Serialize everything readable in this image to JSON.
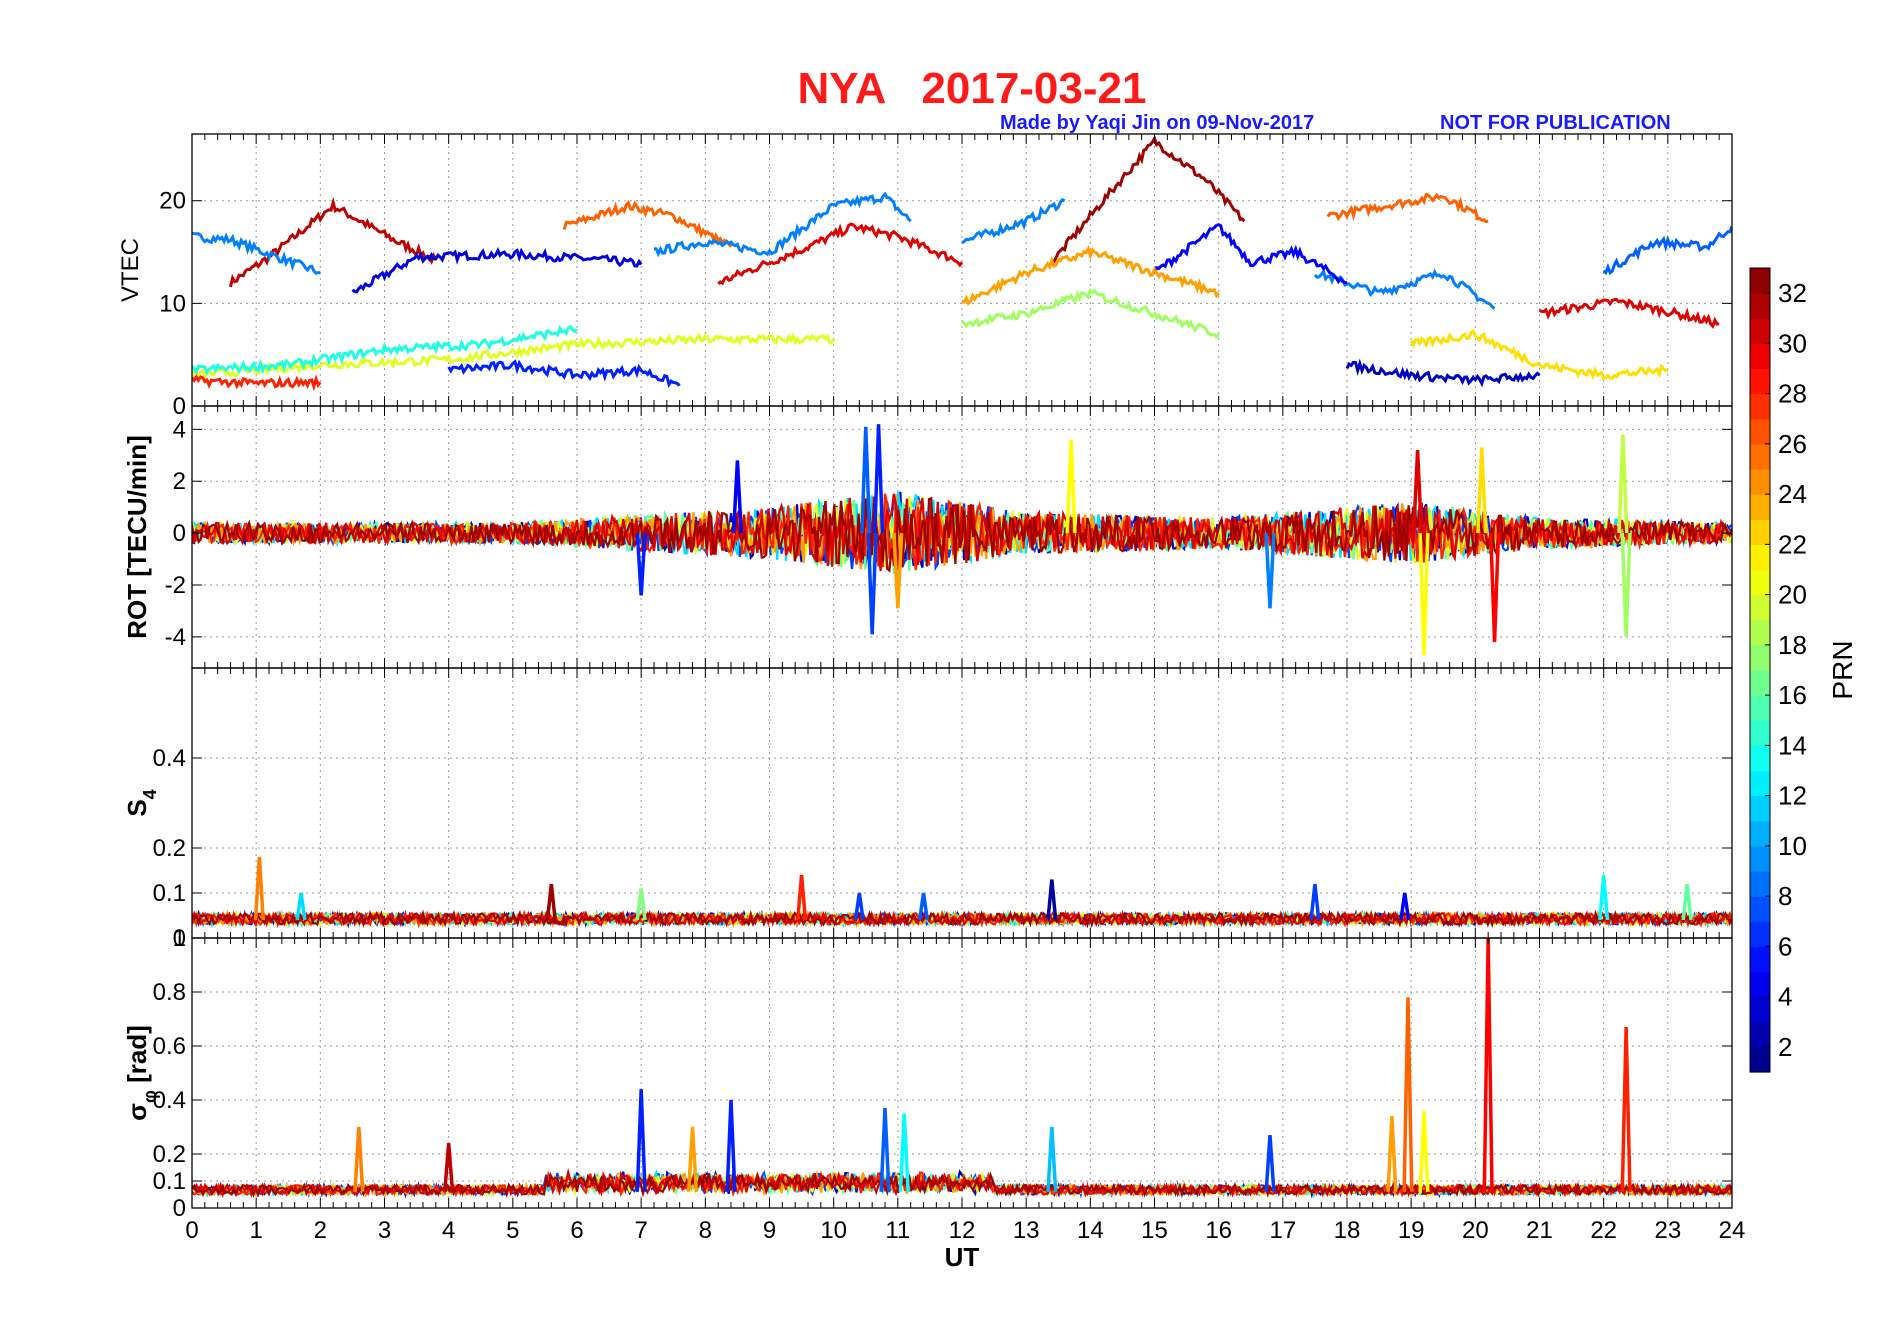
{
  "title": "NYA   2017-03-21",
  "subtitle_left": "Made by Yaqi Jin on 09-Nov-2017",
  "subtitle_right": "NOT FOR PUBLICATION",
  "colors": {
    "title": "#ff1a1a",
    "subtitle": "#1a1aff",
    "axes": "#000000",
    "grid": "#9a9a9a"
  },
  "chart_data": [
    {
      "id": "vtec",
      "type": "line",
      "ylabel": "VTEC",
      "ylim": [
        0,
        26.5
      ],
      "yticks": [
        0,
        10,
        20
      ],
      "xlim": [
        0,
        24
      ],
      "series_sample": [
        {
          "prn": 31,
          "points": [
            [
              0.6,
              12
            ],
            [
              1.2,
              14.5
            ],
            [
              2.2,
              19.5
            ],
            [
              3.2,
              16
            ],
            [
              3.8,
              14.2
            ]
          ]
        },
        {
          "prn": 9,
          "points": [
            [
              0,
              16.5
            ],
            [
              0.6,
              16.2
            ],
            [
              1.2,
              14.8
            ],
            [
              2,
              13
            ]
          ]
        },
        {
          "prn": 4,
          "points": [
            [
              2.5,
              11
            ],
            [
              3.5,
              14.5
            ],
            [
              5,
              14.8
            ],
            [
              6.5,
              14.2
            ],
            [
              7,
              13.8
            ]
          ]
        },
        {
          "prn": 26,
          "points": [
            [
              5.8,
              17.5
            ],
            [
              6.8,
              19.5
            ],
            [
              7.5,
              18.5
            ],
            [
              8.4,
              15.5
            ]
          ]
        },
        {
          "prn": 9,
          "points": [
            [
              7.2,
              15
            ],
            [
              8,
              16
            ],
            [
              9,
              15
            ],
            [
              10,
              19.5
            ],
            [
              10.8,
              20.4
            ],
            [
              11.2,
              18
            ]
          ]
        },
        {
          "prn": 30,
          "points": [
            [
              8.2,
              12
            ],
            [
              9.6,
              15.5
            ],
            [
              10.3,
              17.5
            ],
            [
              11,
              16.5
            ],
            [
              12,
              14
            ]
          ]
        },
        {
          "prn": 9,
          "points": [
            [
              12,
              16
            ],
            [
              13,
              18
            ],
            [
              13.6,
              20
            ]
          ]
        },
        {
          "prn": 32,
          "points": [
            [
              13.4,
              14
            ],
            [
              14.2,
              20
            ],
            [
              15,
              25.8
            ],
            [
              15.8,
              22
            ],
            [
              16.4,
              18
            ]
          ]
        },
        {
          "prn": 26,
          "points": [
            [
              17.7,
              18.5
            ],
            [
              18.6,
              19.5
            ],
            [
              19.5,
              20.5
            ],
            [
              20.2,
              18
            ]
          ]
        },
        {
          "prn": 9,
          "points": [
            [
              17.5,
              13
            ],
            [
              18.5,
              11
            ],
            [
              19.5,
              13
            ],
            [
              20.3,
              9.5
            ]
          ]
        },
        {
          "prn": 8,
          "points": [
            [
              22,
              13
            ],
            [
              22.8,
              16
            ],
            [
              23.6,
              15.5
            ],
            [
              24,
              17.5
            ]
          ]
        },
        {
          "prn": 30,
          "points": [
            [
              21,
              9
            ],
            [
              22.2,
              10.2
            ],
            [
              23,
              9.2
            ],
            [
              23.8,
              8
            ]
          ]
        },
        {
          "prn": 5,
          "points": [
            [
              15,
              13
            ],
            [
              16,
              17.5
            ],
            [
              16.5,
              14
            ],
            [
              17.2,
              15
            ],
            [
              18,
              12
            ]
          ]
        },
        {
          "prn": 24,
          "points": [
            [
              12,
              10
            ],
            [
              13,
              13
            ],
            [
              14,
              15
            ],
            [
              15,
              13
            ],
            [
              16,
              11
            ]
          ]
        },
        {
          "prn": 6,
          "points": [
            [
              4,
              3.5
            ],
            [
              5,
              4
            ],
            [
              6,
              3
            ],
            [
              7,
              3.5
            ],
            [
              7.6,
              2
            ]
          ]
        },
        {
          "prn": 20,
          "points": [
            [
              0,
              3
            ],
            [
              2,
              4
            ],
            [
              4,
              4.5
            ],
            [
              6,
              6
            ],
            [
              8,
              6.5
            ],
            [
              10,
              6.5
            ]
          ]
        },
        {
          "prn": 14,
          "points": [
            [
              0,
              3.5
            ],
            [
              1.5,
              4
            ],
            [
              3,
              5.5
            ],
            [
              4.5,
              6
            ],
            [
              6,
              7.5
            ]
          ]
        },
        {
          "prn": 28,
          "points": [
            [
              0,
              2.5
            ],
            [
              1,
              2.2
            ],
            [
              2,
              2.3
            ]
          ]
        },
        {
          "prn": 18,
          "points": [
            [
              12,
              8
            ],
            [
              13,
              9
            ],
            [
              14,
              11
            ],
            [
              15,
              9
            ],
            [
              16,
              7
            ]
          ]
        },
        {
          "prn": 3,
          "points": [
            [
              18,
              4
            ],
            [
              19,
              3
            ],
            [
              20,
              2.5
            ],
            [
              21,
              3
            ]
          ]
        },
        {
          "prn": 22,
          "points": [
            [
              19,
              6
            ],
            [
              20,
              7
            ],
            [
              21,
              4
            ],
            [
              22,
              3
            ],
            [
              23,
              3.5
            ]
          ]
        }
      ]
    },
    {
      "id": "rot",
      "type": "line",
      "ylabel": "ROT [TECU/min]",
      "ylim": [
        -5.2,
        4.9
      ],
      "yticks": [
        -4,
        -2,
        0,
        2,
        4
      ],
      "xlim": [
        0,
        24
      ],
      "noise_envelope_sample": [
        {
          "ut": 0,
          "amp": 0.4
        },
        {
          "ut": 5,
          "amp": 0.4
        },
        {
          "ut": 9,
          "amp": 1.0
        },
        {
          "ut": 11,
          "amp": 1.6
        },
        {
          "ut": 13,
          "amp": 0.8
        },
        {
          "ut": 16,
          "amp": 0.6
        },
        {
          "ut": 19,
          "amp": 1.2
        },
        {
          "ut": 21,
          "amp": 0.6
        },
        {
          "ut": 24,
          "amp": 0.4
        }
      ],
      "spikes": [
        {
          "ut": 10.6,
          "value": -3.9,
          "prn": 7
        },
        {
          "ut": 10.7,
          "value": 4.2,
          "prn": 6
        },
        {
          "ut": 10.5,
          "value": 4.1,
          "prn": 8
        },
        {
          "ut": 11.0,
          "value": -2.9,
          "prn": 24
        },
        {
          "ut": 7.0,
          "value": -2.4,
          "prn": 6
        },
        {
          "ut": 8.5,
          "value": 2.8,
          "prn": 5
        },
        {
          "ut": 13.7,
          "value": 3.6,
          "prn": 21
        },
        {
          "ut": 16.8,
          "value": -2.9,
          "prn": 9
        },
        {
          "ut": 19.2,
          "value": -4.7,
          "prn": 21
        },
        {
          "ut": 20.3,
          "value": -4.2,
          "prn": 29
        },
        {
          "ut": 20.1,
          "value": 3.3,
          "prn": 22
        },
        {
          "ut": 22.3,
          "value": 3.8,
          "prn": 19
        },
        {
          "ut": 22.35,
          "value": -4.0,
          "prn": 18
        },
        {
          "ut": 19.1,
          "value": 3.2,
          "prn": 30
        }
      ]
    },
    {
      "id": "s4",
      "type": "line",
      "ylabel": "S",
      "ylabel_sub": "4",
      "ylim": [
        0,
        0.6
      ],
      "yticks": [
        0,
        0.1,
        0.2,
        0.4
      ],
      "ytick_labels": [
        "0",
        "0.1",
        "0.2",
        "0.4"
      ],
      "extra_zero_label": "1",
      "xlim": [
        0,
        24
      ],
      "spikes": [
        {
          "ut": 1.05,
          "value": 0.18,
          "prn": 25
        },
        {
          "ut": 1.7,
          "value": 0.1,
          "prn": 12
        },
        {
          "ut": 5.6,
          "value": 0.12,
          "prn": 32
        },
        {
          "ut": 7.0,
          "value": 0.11,
          "prn": 17
        },
        {
          "ut": 9.5,
          "value": 0.14,
          "prn": 28
        },
        {
          "ut": 10.4,
          "value": 0.1,
          "prn": 7
        },
        {
          "ut": 11.4,
          "value": 0.1,
          "prn": 8
        },
        {
          "ut": 13.4,
          "value": 0.13,
          "prn": 2
        },
        {
          "ut": 17.5,
          "value": 0.12,
          "prn": 7
        },
        {
          "ut": 18.9,
          "value": 0.1,
          "prn": 5
        },
        {
          "ut": 22.0,
          "value": 0.14,
          "prn": 13
        },
        {
          "ut": 23.3,
          "value": 0.12,
          "prn": 16
        }
      ]
    },
    {
      "id": "sigma",
      "type": "line",
      "ylabel": "σ",
      "ylabel_sub": "φ",
      "ylabel_tail": " [rad]",
      "ylim": [
        0,
        1.0
      ],
      "yticks": [
        0,
        0.1,
        0.2,
        0.4,
        0.6,
        0.8
      ],
      "ytick_labels": [
        "0",
        "0.1",
        "0.2",
        "0.4",
        "0.6",
        "0.8"
      ],
      "xlim": [
        0,
        24
      ],
      "xlabel": "UT",
      "xticks": [
        0,
        1,
        2,
        3,
        4,
        5,
        6,
        7,
        8,
        9,
        10,
        11,
        12,
        13,
        14,
        15,
        16,
        17,
        18,
        19,
        20,
        21,
        22,
        23,
        24
      ],
      "spikes": [
        {
          "ut": 2.6,
          "value": 0.3,
          "prn": 25
        },
        {
          "ut": 4.0,
          "value": 0.24,
          "prn": 31
        },
        {
          "ut": 7.0,
          "value": 0.44,
          "prn": 6
        },
        {
          "ut": 7.8,
          "value": 0.3,
          "prn": 24
        },
        {
          "ut": 8.4,
          "value": 0.4,
          "prn": 6
        },
        {
          "ut": 10.8,
          "value": 0.37,
          "prn": 8
        },
        {
          "ut": 11.1,
          "value": 0.35,
          "prn": 13
        },
        {
          "ut": 13.4,
          "value": 0.3,
          "prn": 11
        },
        {
          "ut": 16.8,
          "value": 0.27,
          "prn": 7
        },
        {
          "ut": 18.7,
          "value": 0.34,
          "prn": 24
        },
        {
          "ut": 18.95,
          "value": 0.78,
          "prn": 26
        },
        {
          "ut": 19.2,
          "value": 0.36,
          "prn": 21
        },
        {
          "ut": 20.2,
          "value": 1.0,
          "prn": 29
        },
        {
          "ut": 22.35,
          "value": 0.67,
          "prn": 28
        }
      ]
    }
  ],
  "colorbar": {
    "label": "PRN",
    "range": [
      1,
      33
    ],
    "ticks": [
      2,
      4,
      6,
      8,
      10,
      12,
      14,
      16,
      18,
      20,
      22,
      24,
      26,
      28,
      30,
      32
    ],
    "colormap": "jet"
  }
}
